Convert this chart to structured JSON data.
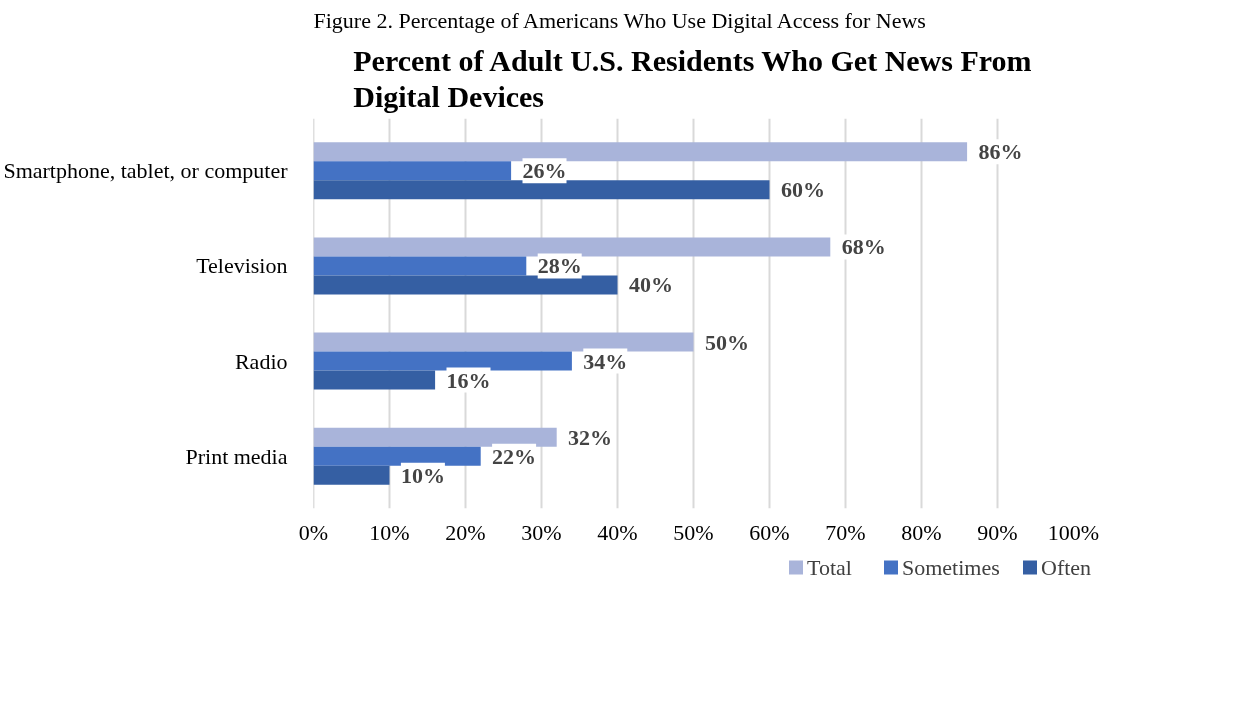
{
  "chart_data": {
    "type": "bar",
    "orientation": "horizontal",
    "title": "Percent of Adult U.S. Residents Who Get News From\nDigital Devices",
    "annotations": [
      "Figure 2. Percentage of Americans Who Use Digital Access for News"
    ],
    "categories": [
      "Smartphone, tablet, or computer",
      "Television",
      "Radio",
      "Print media"
    ],
    "series": [
      {
        "name": "Total",
        "color": "#a9b4da",
        "values": [
          86,
          68,
          50,
          32
        ],
        "value_labels": [
          "86%",
          "68%",
          "50%",
          "32%"
        ]
      },
      {
        "name": "Sometimes",
        "color": "#4472c4",
        "values": [
          26,
          28,
          34,
          22
        ],
        "value_labels": [
          "26%",
          "28%",
          "34%",
          "22%"
        ]
      },
      {
        "name": "Often",
        "color": "#355fa3",
        "values": [
          60,
          40,
          16,
          10
        ],
        "value_labels": [
          "60%",
          "40%",
          "16%",
          "10%"
        ]
      }
    ],
    "xlim": [
      0,
      100
    ],
    "xticks": [
      {
        "value": 0,
        "label": "0%"
      },
      {
        "value": 10,
        "label": "10%"
      },
      {
        "value": 20,
        "label": "20%"
      },
      {
        "value": 30,
        "label": "30%"
      },
      {
        "value": 40,
        "label": "40%"
      },
      {
        "value": 50,
        "label": "50%"
      },
      {
        "value": 60,
        "label": "60%"
      },
      {
        "value": 70,
        "label": "70%"
      },
      {
        "value": 80,
        "label": "80%"
      },
      {
        "value": 90,
        "label": "90%"
      },
      {
        "value": 100,
        "label": "100%"
      }
    ],
    "grid": "x",
    "legend": "bottom"
  }
}
